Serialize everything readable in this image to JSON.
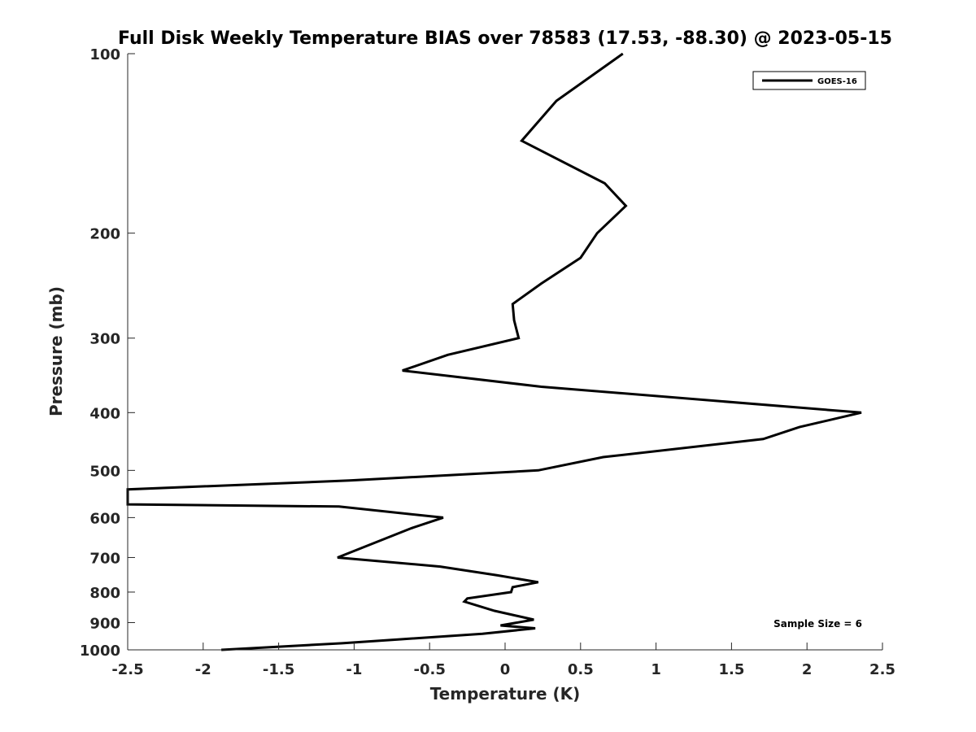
{
  "chart_data": {
    "type": "line",
    "title": "Full Disk Weekly Temperature BIAS over 78583 (17.53, -88.30) @ 2023-05-15",
    "xlabel": "Temperature (K)",
    "ylabel": "Pressure (mb)",
    "xlim": [
      -2.5,
      2.5
    ],
    "ylim": [
      100,
      1000
    ],
    "y_scale": "log",
    "y_reversed": true,
    "xticks": [
      -2.5,
      -2,
      -1.5,
      -1,
      -0.5,
      0,
      0.5,
      1,
      1.5,
      2,
      2.5
    ],
    "xtick_labels": [
      "-2.5",
      "-2",
      "-1.5",
      "-1",
      "-0.5",
      "0",
      "0.5",
      "1",
      "1.5",
      "2",
      "2.5"
    ],
    "yticks": [
      100,
      200,
      300,
      400,
      500,
      600,
      700,
      800,
      900,
      1000
    ],
    "ytick_labels": [
      "100",
      "200",
      "300",
      "400",
      "500",
      "600",
      "700",
      "800",
      "900",
      "1000"
    ],
    "grid": false,
    "legend_position": "top-right",
    "annotation": "Sample Size = 6",
    "series": [
      {
        "name": "GOES-16",
        "color": "#000000",
        "points": [
          [
            0.78,
            100
          ],
          [
            0.34,
            120
          ],
          [
            0.11,
            140
          ],
          [
            0.66,
            165
          ],
          [
            0.8,
            180
          ],
          [
            0.61,
            200
          ],
          [
            0.5,
            220
          ],
          [
            0.24,
            243
          ],
          [
            0.05,
            263
          ],
          [
            0.06,
            280
          ],
          [
            0.09,
            300
          ],
          [
            -0.38,
            320
          ],
          [
            -0.68,
            340
          ],
          [
            0.24,
            362
          ],
          [
            2.36,
            400
          ],
          [
            1.95,
            423
          ],
          [
            1.71,
            443
          ],
          [
            0.65,
            475
          ],
          [
            0.22,
            500
          ],
          [
            -1.03,
            520
          ],
          [
            -2.5,
            538
          ],
          [
            -2.5,
            570
          ],
          [
            -1.1,
            575
          ],
          [
            -0.41,
            600
          ],
          [
            -0.62,
            625
          ],
          [
            -1.11,
            700
          ],
          [
            -0.43,
            725
          ],
          [
            -0.05,
            750
          ],
          [
            0.22,
            770
          ],
          [
            0.05,
            785
          ],
          [
            0.04,
            800
          ],
          [
            -0.25,
            820
          ],
          [
            -0.27,
            830
          ],
          [
            -0.07,
            860
          ],
          [
            0.19,
            890
          ],
          [
            -0.03,
            910
          ],
          [
            0.2,
            920
          ],
          [
            -0.15,
            940
          ],
          [
            -0.69,
            960
          ],
          [
            -1.08,
            975
          ],
          [
            -1.88,
            1000
          ]
        ]
      }
    ]
  }
}
